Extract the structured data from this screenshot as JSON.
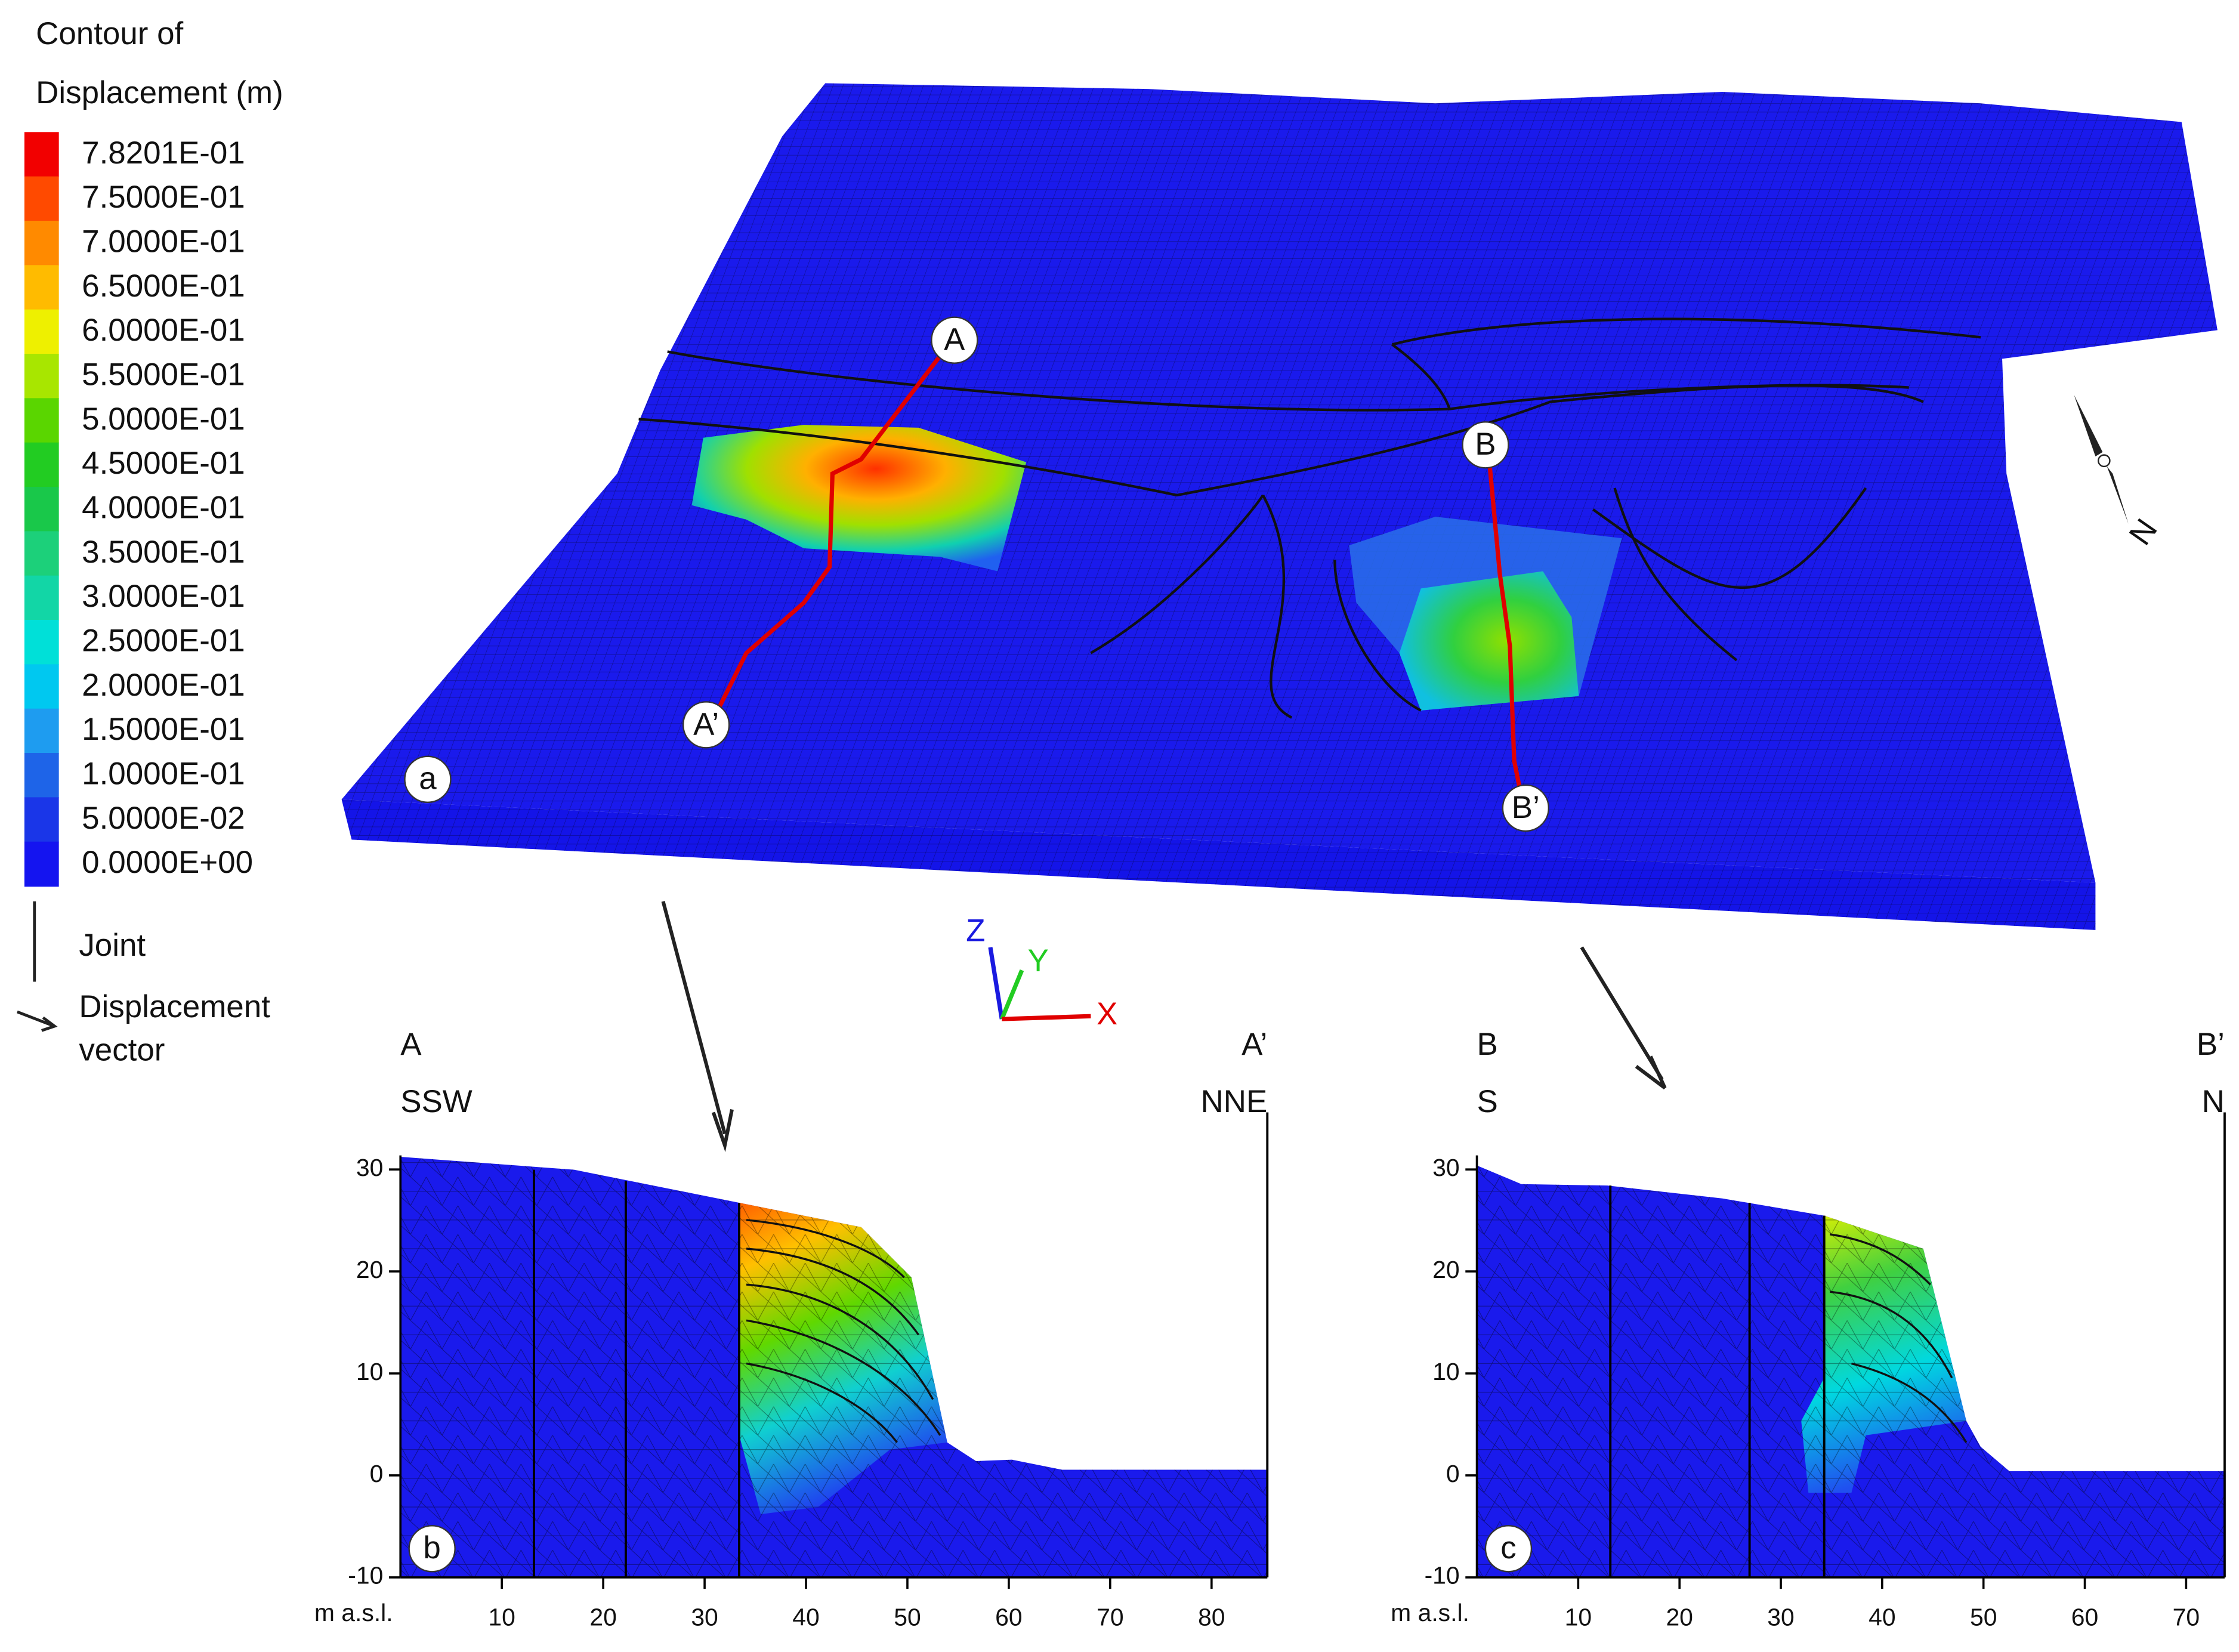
{
  "legend": {
    "title": [
      "Contour of",
      "Displacement (m)"
    ],
    "levels": [
      {
        "label": "7.8201E-01",
        "color": "#f20000"
      },
      {
        "label": "7.5000E-01",
        "color": "#ff4a00"
      },
      {
        "label": "7.0000E-01",
        "color": "#ff8a00"
      },
      {
        "label": "6.5000E-01",
        "color": "#ffbb00"
      },
      {
        "label": "6.0000E-01",
        "color": "#eef000"
      },
      {
        "label": "5.5000E-01",
        "color": "#a8e600"
      },
      {
        "label": "5.0000E-01",
        "color": "#5ad600"
      },
      {
        "label": "4.5000E-01",
        "color": "#22cc22"
      },
      {
        "label": "4.0000E-01",
        "color": "#19c84a"
      },
      {
        "label": "3.5000E-01",
        "color": "#1cd07a"
      },
      {
        "label": "3.0000E-01",
        "color": "#12d6a6"
      },
      {
        "label": "2.5000E-01",
        "color": "#00e0d8"
      },
      {
        "label": "2.0000E-01",
        "color": "#00c8f0"
      },
      {
        "label": "1.5000E-01",
        "color": "#1e9cf0"
      },
      {
        "label": "1.0000E-01",
        "color": "#1e64e8"
      },
      {
        "label": "5.0000E-02",
        "color": "#1a36e8"
      },
      {
        "label": "0.0000E+00",
        "color": "#1414f0"
      }
    ],
    "joint": "Joint",
    "vector": [
      "Displacement",
      "vector"
    ]
  },
  "model": {
    "panel": "a",
    "section_a": [
      "A",
      "A’"
    ],
    "section_b": [
      "B",
      "B’"
    ],
    "north": "N",
    "axes": [
      "Z",
      "Y",
      "X"
    ]
  },
  "sections": [
    {
      "panel": "b",
      "ends": [
        "A",
        "A’"
      ],
      "directions": [
        "SSW",
        "NNE"
      ],
      "xlabel": "m a.s.l.",
      "xlim": [
        0,
        85.5
      ],
      "ylim": [
        -10,
        35.6
      ],
      "xticks": [
        10,
        20,
        30,
        40,
        50,
        60,
        70,
        80
      ],
      "yticks": [
        -10,
        0,
        10,
        20,
        30
      ]
    },
    {
      "panel": "c",
      "ends": [
        "B",
        "B’"
      ],
      "directions": [
        "S",
        "N"
      ],
      "xlabel": "m a.s.l.",
      "xlim": [
        0,
        73.8
      ],
      "ylim": [
        -10,
        35.6
      ],
      "xticks": [
        10,
        20,
        30,
        40,
        50,
        60,
        70
      ],
      "yticks": [
        -10,
        0,
        10,
        20,
        30
      ]
    }
  ]
}
